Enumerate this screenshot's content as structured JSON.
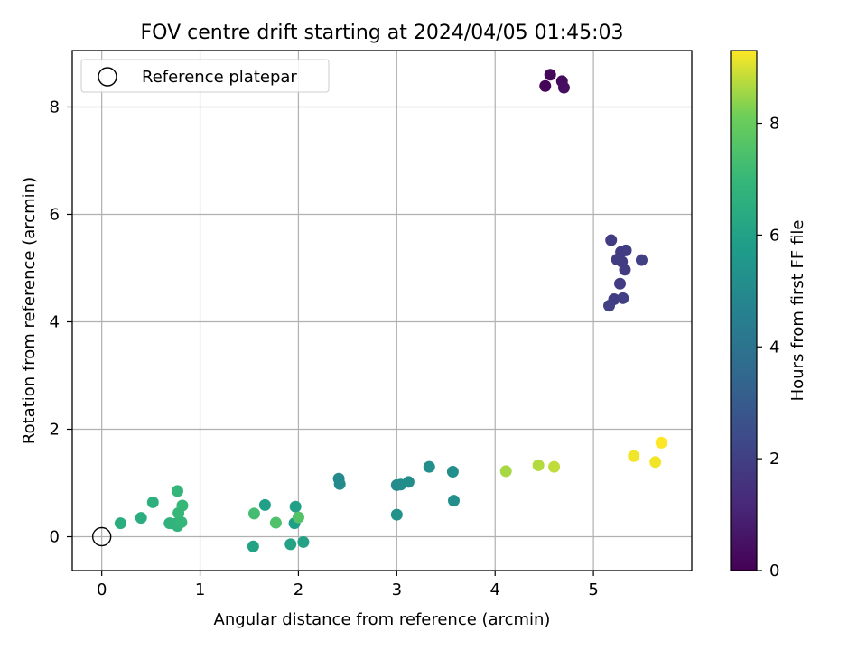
{
  "chart_data": {
    "type": "scatter",
    "title": "FOV centre drift starting at 2024/04/05 01:45:03",
    "xlabel": "Angular distance from reference (arcmin)",
    "ylabel": "Rotation from reference (arcmin)",
    "xlim": [
      -0.3,
      6.0
    ],
    "ylim": [
      -0.63,
      9.05
    ],
    "x_ticks": [
      0,
      1,
      2,
      3,
      4,
      5
    ],
    "y_ticks": [
      0,
      2,
      4,
      6,
      8
    ],
    "grid": true,
    "legend": {
      "position": "top-left",
      "entries": [
        "Reference platepar"
      ]
    },
    "reference_point": {
      "x": 0,
      "y": 0,
      "label": "Reference platepar"
    },
    "colorbar": {
      "label": "Hours from first FF file",
      "colormap": "viridis",
      "range": [
        0,
        9.3
      ],
      "ticks": [
        0,
        2,
        4,
        6,
        8
      ]
    },
    "points": [
      {
        "x": 4.51,
        "y": 8.39,
        "c": 0.1
      },
      {
        "x": 4.56,
        "y": 8.6,
        "c": 0.2
      },
      {
        "x": 4.68,
        "y": 8.48,
        "c": 0.3
      },
      {
        "x": 4.7,
        "y": 8.36,
        "c": 0.4
      },
      {
        "x": 5.18,
        "y": 5.52,
        "c": 1.9
      },
      {
        "x": 5.24,
        "y": 5.16,
        "c": 1.9
      },
      {
        "x": 5.27,
        "y": 4.71,
        "c": 1.9
      },
      {
        "x": 5.28,
        "y": 5.3,
        "c": 1.9
      },
      {
        "x": 5.29,
        "y": 5.12,
        "c": 1.9
      },
      {
        "x": 5.33,
        "y": 5.33,
        "c": 1.9
      },
      {
        "x": 5.32,
        "y": 4.97,
        "c": 1.9
      },
      {
        "x": 5.49,
        "y": 5.15,
        "c": 2.0
      },
      {
        "x": 5.21,
        "y": 4.42,
        "c": 1.9
      },
      {
        "x": 5.16,
        "y": 4.3,
        "c": 2.0
      },
      {
        "x": 5.3,
        "y": 4.44,
        "c": 2.0
      },
      {
        "x": 2.41,
        "y": 1.08,
        "c": 5.0
      },
      {
        "x": 2.42,
        "y": 0.98,
        "c": 5.0
      },
      {
        "x": 3.0,
        "y": 0.96,
        "c": 5.0
      },
      {
        "x": 3.04,
        "y": 0.97,
        "c": 5.1
      },
      {
        "x": 3.12,
        "y": 1.02,
        "c": 5.1
      },
      {
        "x": 3.33,
        "y": 1.3,
        "c": 5.2
      },
      {
        "x": 3.57,
        "y": 1.21,
        "c": 5.2
      },
      {
        "x": 3.58,
        "y": 0.67,
        "c": 5.2
      },
      {
        "x": 3.0,
        "y": 0.41,
        "c": 5.3
      },
      {
        "x": 1.66,
        "y": 0.59,
        "c": 5.9
      },
      {
        "x": 1.97,
        "y": 0.56,
        "c": 5.9
      },
      {
        "x": 1.96,
        "y": 0.25,
        "c": 5.8
      },
      {
        "x": 1.54,
        "y": -0.18,
        "c": 6.0
      },
      {
        "x": 1.92,
        "y": -0.14,
        "c": 6.0
      },
      {
        "x": 2.05,
        "y": -0.1,
        "c": 6.0
      },
      {
        "x": 0.19,
        "y": 0.25,
        "c": 6.5
      },
      {
        "x": 0.4,
        "y": 0.35,
        "c": 6.5
      },
      {
        "x": 0.52,
        "y": 0.64,
        "c": 6.6
      },
      {
        "x": 0.69,
        "y": 0.25,
        "c": 6.7
      },
      {
        "x": 0.74,
        "y": 0.24,
        "c": 6.8
      },
      {
        "x": 0.77,
        "y": 0.2,
        "c": 6.8
      },
      {
        "x": 0.81,
        "y": 0.27,
        "c": 6.9
      },
      {
        "x": 0.78,
        "y": 0.44,
        "c": 7.0
      },
      {
        "x": 0.82,
        "y": 0.58,
        "c": 7.0
      },
      {
        "x": 0.77,
        "y": 0.85,
        "c": 6.9
      },
      {
        "x": 1.55,
        "y": 0.43,
        "c": 7.3
      },
      {
        "x": 1.77,
        "y": 0.26,
        "c": 7.5
      },
      {
        "x": 2.0,
        "y": 0.36,
        "c": 7.6
      },
      {
        "x": 4.11,
        "y": 1.22,
        "c": 8.6
      },
      {
        "x": 4.44,
        "y": 1.33,
        "c": 8.7
      },
      {
        "x": 4.6,
        "y": 1.3,
        "c": 8.8
      },
      {
        "x": 5.41,
        "y": 1.5,
        "c": 9.2
      },
      {
        "x": 5.63,
        "y": 1.39,
        "c": 9.2
      },
      {
        "x": 5.69,
        "y": 1.75,
        "c": 9.3
      }
    ]
  }
}
